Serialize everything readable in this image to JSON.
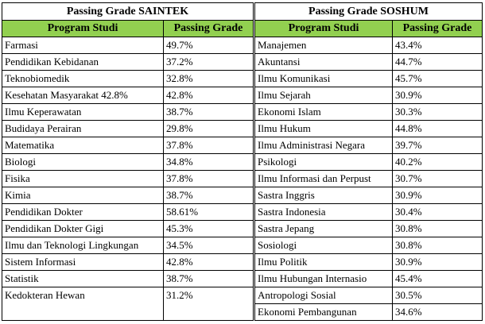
{
  "tables": [
    {
      "title": "Passing Grade SAINTEK",
      "headers": [
        "Program Studi",
        "Passing Grade"
      ],
      "rows": [
        [
          "Farmasi",
          "49.7%"
        ],
        [
          "Pendidikan Kebidanan",
          "37.2%"
        ],
        [
          "Teknobiomedik",
          "32.8%"
        ],
        [
          "Kesehatan Masyarakat  42.8%",
          "42.8%"
        ],
        [
          "Ilmu Keperawatan",
          "38.7%"
        ],
        [
          "Budidaya Perairan",
          "29.8%"
        ],
        [
          "Matematika",
          "37.8%"
        ],
        [
          "Biologi",
          "34.8%"
        ],
        [
          "Fisika",
          "37.8%"
        ],
        [
          "Kimia",
          "38.7%"
        ],
        [
          "Pendidikan Dokter",
          "58.61%"
        ],
        [
          "Pendidikan Dokter Gigi",
          "45.3%"
        ],
        [
          "Ilmu dan Teknologi Lingkungan",
          "34.5%"
        ],
        [
          "Sistem Informasi",
          "42.8%"
        ],
        [
          "Statistik",
          "38.7%"
        ],
        [
          "Kedokteran Hewan",
          "31.2%"
        ]
      ]
    },
    {
      "title": "Passing Grade SOSHUM",
      "headers": [
        "Program Studi",
        "Passing Grade"
      ],
      "rows": [
        [
          "Manajemen",
          "43.4%"
        ],
        [
          "Akuntansi",
          "44.7%"
        ],
        [
          "Ilmu Komunikasi",
          "45.7%"
        ],
        [
          "Ilmu Sejarah",
          "30.9%"
        ],
        [
          "Ekonomi Islam",
          "30.3%"
        ],
        [
          "Ilmu Hukum",
          "44.8%"
        ],
        [
          "Ilmu Administrasi Negara",
          "39.7%"
        ],
        [
          "Psikologi",
          "40.2%"
        ],
        [
          "Ilmu Informasi dan Perpust",
          "30.7%"
        ],
        [
          "Sastra Inggris",
          "30.9%"
        ],
        [
          "Sastra Indonesia",
          "30.4%"
        ],
        [
          "Sastra Jepang",
          "30.8%"
        ],
        [
          "Sosiologi",
          "30.8%"
        ],
        [
          "Ilmu Politik",
          "30.9%"
        ],
        [
          "Ilmu Hubungan Internasio",
          "45.4%"
        ],
        [
          "Antropologi Sosial",
          "30.5%"
        ],
        [
          "Ekonomi Pembangunan",
          "34.6%"
        ]
      ]
    }
  ]
}
